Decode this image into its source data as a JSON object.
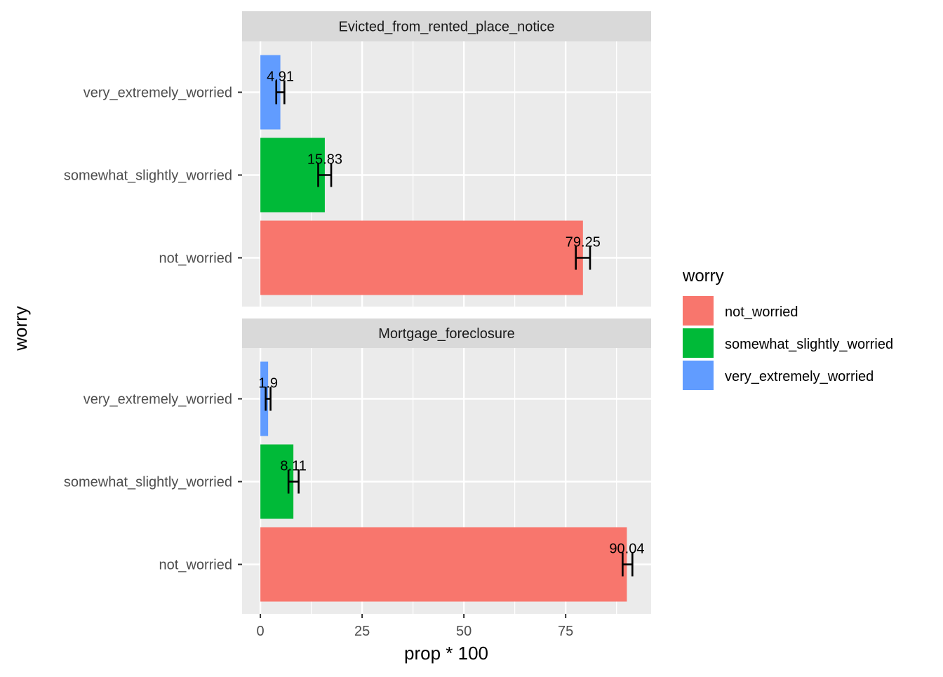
{
  "chart_data": {
    "type": "bar",
    "orientation": "horizontal",
    "facet_layout": "rows",
    "xlabel": "prop * 100",
    "ylabel": "worry",
    "xlim": [
      -4.5,
      96
    ],
    "x_ticks": [
      0,
      25,
      50,
      75
    ],
    "x_minor_ticks": [
      12.5,
      37.5,
      62.5,
      87.5
    ],
    "grid": true,
    "categories": [
      "not_worried",
      "somewhat_slightly_worried",
      "very_extremely_worried"
    ],
    "facets": [
      {
        "title": "Evicted_from_rented_place_notice",
        "bars": [
          {
            "category": "very_extremely_worried",
            "value": 4.91,
            "label": "4.91",
            "err_low": 3.9,
            "err_high": 5.9
          },
          {
            "category": "somewhat_slightly_worried",
            "value": 15.83,
            "label": "15.83",
            "err_low": 14.2,
            "err_high": 17.4
          },
          {
            "category": "not_worried",
            "value": 79.25,
            "label": "79.25",
            "err_low": 77.5,
            "err_high": 81.0
          }
        ]
      },
      {
        "title": "Mortgage_foreclosure",
        "bars": [
          {
            "category": "very_extremely_worried",
            "value": 1.9,
            "label": "1.9",
            "err_low": 1.3,
            "err_high": 2.5
          },
          {
            "category": "somewhat_slightly_worried",
            "value": 8.11,
            "label": "8.11",
            "err_low": 6.9,
            "err_high": 9.4
          },
          {
            "category": "not_worried",
            "value": 90.04,
            "label": "90.04",
            "err_low": 89.0,
            "err_high": 91.4
          }
        ]
      }
    ],
    "legend": {
      "title": "worry",
      "placement": "right",
      "entries": [
        {
          "name": "not_worried",
          "color": "#F8766D"
        },
        {
          "name": "somewhat_slightly_worried",
          "color": "#00BA38"
        },
        {
          "name": "very_extremely_worried",
          "color": "#619CFF"
        }
      ]
    },
    "colors": {
      "not_worried": "#F8766D",
      "somewhat_slightly_worried": "#00BA38",
      "very_extremely_worried": "#619CFF",
      "panel_background": "#EBEBEB",
      "strip_background": "#D9D9D9",
      "grid": "#FFFFFF"
    }
  }
}
